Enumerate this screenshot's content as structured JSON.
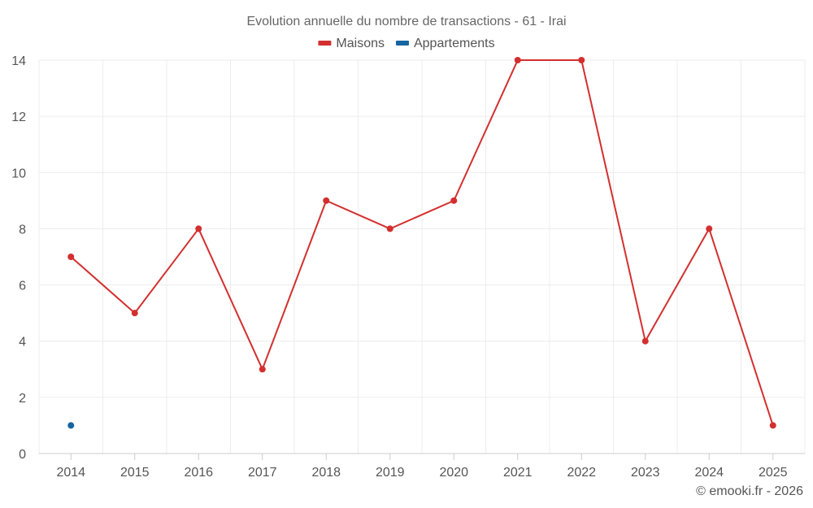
{
  "chart_data": {
    "type": "line",
    "title": "Evolution annuelle du nombre de transactions - 61 - Irai",
    "categories": [
      "2014",
      "2015",
      "2016",
      "2017",
      "2018",
      "2019",
      "2020",
      "2021",
      "2022",
      "2023",
      "2024",
      "2025"
    ],
    "series": [
      {
        "name": "Maisons",
        "color": "#d32f2f",
        "values": [
          7,
          5,
          8,
          3,
          9,
          8,
          9,
          14,
          14,
          4,
          8,
          1
        ]
      },
      {
        "name": "Appartements",
        "color": "#1565a0",
        "values": [
          1,
          null,
          null,
          null,
          null,
          null,
          null,
          null,
          null,
          null,
          null,
          null
        ]
      }
    ],
    "ylim": [
      0,
      14
    ],
    "yticks": [
      0,
      2,
      4,
      6,
      8,
      10,
      12,
      14
    ],
    "grid": true,
    "legend_position": "top-center"
  },
  "credit": "© emooki.fr - 2026"
}
